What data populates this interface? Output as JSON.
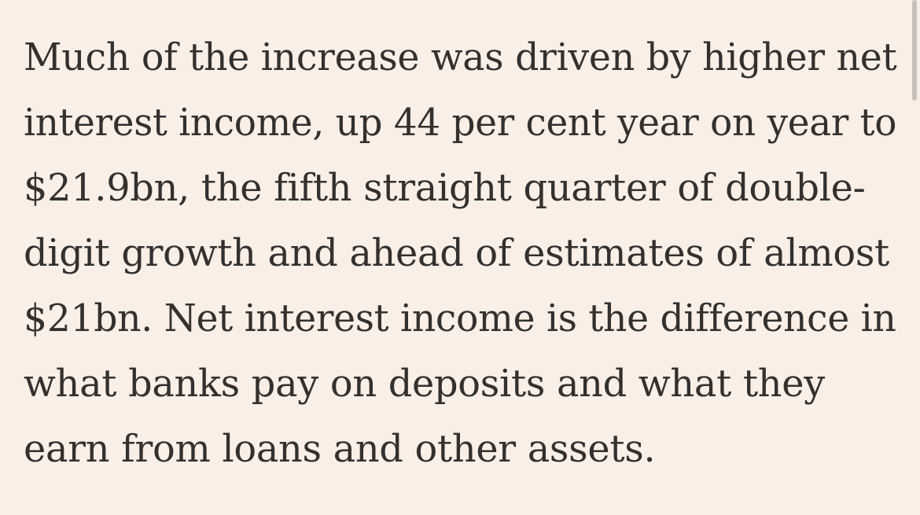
{
  "colors": {
    "background": "#FAEFE6",
    "text": "#33302E",
    "scrollbar_thumb": "#C9C1B9"
  },
  "article": {
    "lines": [
      "Much of the increase was driven by higher net",
      "interest income, up 44 per cent year on year to",
      "$21.9bn, the fifth straight quarter of double-",
      "digit growth and ahead of estimates of almost",
      "$21bn. Net interest income is the difference in",
      "what banks pay on deposits and what they",
      "earn from loans and other assets."
    ]
  }
}
